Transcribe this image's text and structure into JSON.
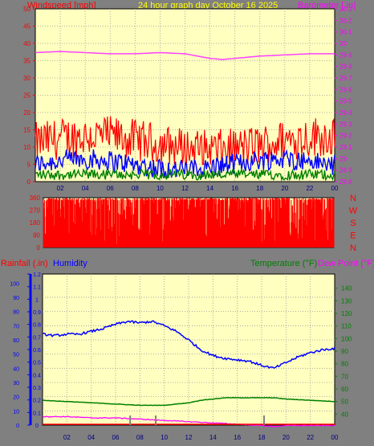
{
  "header": {
    "left_label": "Windspeed [mph]",
    "center_label": "24 hour graph day   October 16 2025",
    "right_label": "Barometer [.in]"
  },
  "lower_header": {
    "rain_label": "Rainfall (.in)",
    "humidity_label": "Humidity",
    "temp_label": "Temperature (°F)",
    "dew_label": "Dew Point (°F)"
  },
  "colors": {
    "background": "#808080",
    "plot_bg": "#ffffc0",
    "wind_gust": "#ff0000",
    "wind_avg": "#0000ff",
    "wind_low": "#008000",
    "barometer": "#ff40ff",
    "direction": "#ff0000",
    "humidity": "#0000ff",
    "temperature": "#008000",
    "dewpoint": "#ff00ff",
    "rainfall": "#ff0000",
    "header_center": "#ffff00",
    "axis_red": "#ff0000",
    "axis_magenta": "#ff00ff"
  },
  "chart_data": [
    {
      "type": "line",
      "title": "24 hour graph day   October 16 2025",
      "x_ticks": [
        "02",
        "04",
        "06",
        "08",
        "10",
        "12",
        "14",
        "16",
        "18",
        "20",
        "22",
        "00"
      ],
      "ylabel_left": "Windspeed [mph]",
      "ylim_left": [
        0,
        50
      ],
      "y_ticks_left": [
        "0",
        "5",
        "10",
        "15",
        "20",
        "25",
        "30",
        "35",
        "40",
        "45",
        "50"
      ],
      "ylabel_right": "Barometer [.in]",
      "ylim_right": [
        28.8,
        30.3
      ],
      "y_ticks_right": [
        "28.8",
        "28.9",
        "29",
        "29.1",
        "29.2",
        "29.3",
        "29.4",
        "29.5",
        "29.6",
        "29.7",
        "29.8",
        "29.9",
        "30",
        "30.1",
        "30.2",
        "30.3"
      ],
      "series": [
        {
          "name": "gust",
          "color": "#ff0000",
          "axis": "left",
          "approx_mean": 11,
          "approx_range": [
            6,
            22
          ]
        },
        {
          "name": "average",
          "color": "#0000ff",
          "axis": "left",
          "approx_mean": 5,
          "approx_range": [
            1,
            9
          ]
        },
        {
          "name": "low",
          "color": "#008000",
          "axis": "left",
          "approx_mean": 2,
          "approx_range": [
            0,
            4
          ]
        },
        {
          "name": "barometer",
          "color": "#ff40ff",
          "axis": "right",
          "x_hours": [
            0,
            2,
            4,
            6,
            8,
            10,
            12,
            13,
            14,
            15,
            16,
            18,
            20,
            22,
            24
          ],
          "values": [
            29.92,
            29.93,
            29.92,
            29.91,
            29.91,
            29.92,
            29.91,
            29.89,
            29.87,
            29.86,
            29.87,
            29.89,
            29.9,
            29.91,
            29.91
          ]
        }
      ],
      "grid": true
    },
    {
      "type": "scatter",
      "ylabel_right": [
        "N",
        "W",
        "S",
        "E",
        "N"
      ],
      "ylim": [
        0,
        360
      ],
      "y_ticks": [
        "0",
        "90",
        "180",
        "270",
        "360"
      ],
      "series": [
        {
          "name": "direction",
          "color": "#ff0000"
        }
      ]
    },
    {
      "type": "line",
      "x_ticks": [
        "02",
        "04",
        "06",
        "08",
        "10",
        "12",
        "14",
        "16",
        "18",
        "20",
        "22",
        "00"
      ],
      "ylabel_left_outer": "Rainfall (.in)",
      "ylim_left_outer": [
        0,
        1.2
      ],
      "y_ticks_left_outer": [
        "0",
        "0.1",
        "0.2",
        "0.3",
        "0.4",
        "0.5",
        "0.6",
        "0.7",
        "0.8",
        "0.9",
        "1",
        "1.1",
        "1.2"
      ],
      "ylabel_left_inner": "Humidity",
      "ylim_left_inner": [
        0,
        100
      ],
      "y_ticks_left_inner": [
        "0",
        "10",
        "20",
        "30",
        "40",
        "50",
        "60",
        "70",
        "80",
        "90",
        "100"
      ],
      "ylabel_right": "Temperature (°F) / Dew Point (°F)",
      "ylim_right": [
        30,
        150
      ],
      "y_ticks_right": [
        "40",
        "50",
        "60",
        "70",
        "80",
        "90",
        "100",
        "110",
        "120",
        "130",
        "140"
      ],
      "series": [
        {
          "name": "Humidity",
          "color": "#0000ff",
          "axis": "humidity",
          "x_hours": [
            0,
            1,
            2,
            3,
            4,
            5,
            6,
            7,
            8,
            9,
            10,
            11,
            12,
            13,
            14,
            15,
            16,
            17,
            18,
            19,
            20,
            21,
            22,
            23,
            24
          ],
          "values": [
            64,
            63,
            64,
            64,
            66,
            68,
            71,
            73,
            72,
            73,
            70,
            66,
            60,
            53,
            49,
            47,
            46,
            45,
            42,
            40,
            44,
            48,
            51,
            53,
            54
          ]
        },
        {
          "name": "Temperature (°F)",
          "color": "#008000",
          "axis": "temperature",
          "x_hours": [
            0,
            2,
            4,
            6,
            8,
            9,
            10,
            12,
            13,
            14,
            15,
            16,
            17,
            18,
            19,
            20,
            22,
            24
          ],
          "values": [
            51,
            50,
            49,
            48,
            47,
            47,
            47,
            49,
            51,
            52,
            53,
            53,
            53,
            53,
            53,
            52,
            51,
            50
          ]
        },
        {
          "name": "Dew Point (°F)",
          "color": "#ff00ff",
          "axis": "temperature",
          "x_hours": [
            0,
            2,
            4,
            6,
            8,
            10,
            12,
            14,
            16,
            18,
            19,
            20,
            22,
            24
          ],
          "values": [
            38,
            38,
            37,
            37,
            36,
            35,
            34,
            33,
            32,
            31,
            30,
            31,
            31,
            31
          ]
        },
        {
          "name": "Rainfall (.in)",
          "color": "#ff0000",
          "axis": "rain",
          "x_hours": [
            0,
            24
          ],
          "values": [
            0,
            0
          ]
        }
      ],
      "grid": true
    }
  ]
}
